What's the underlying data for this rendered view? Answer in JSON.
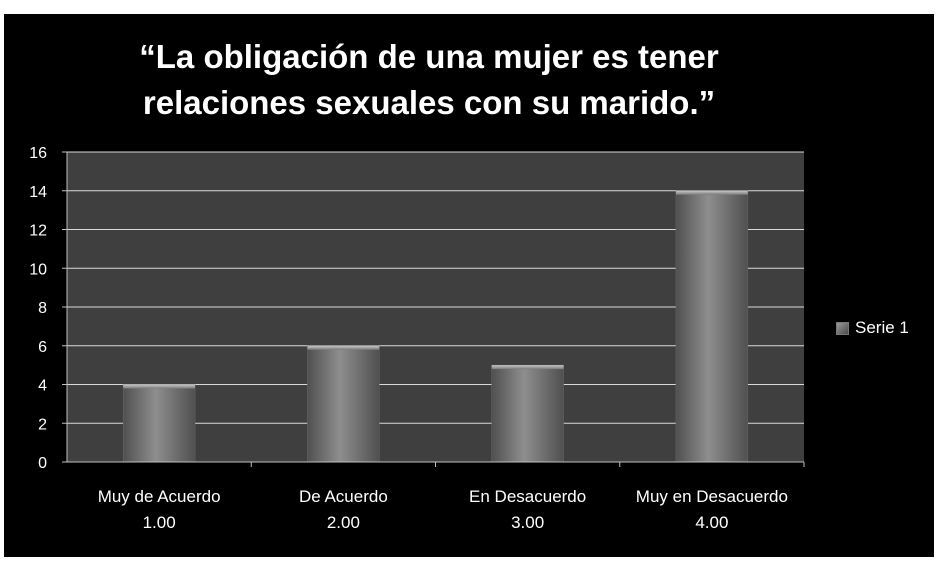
{
  "chart_data": {
    "type": "bar",
    "title_lines": [
      "“La obligación de una mujer es tener",
      "relaciones sexuales con su  marido.”"
    ],
    "categories": [
      {
        "label": "Muy de Acuerdo",
        "code": "1.00"
      },
      {
        "label": "De Acuerdo",
        "code": "2.00"
      },
      {
        "label": "En Desacuerdo",
        "code": "3.00"
      },
      {
        "label": "Muy en Desacuerdo",
        "code": "4.00"
      }
    ],
    "series": [
      {
        "name": "Serie 1",
        "values": [
          4,
          6,
          5,
          14
        ]
      }
    ],
    "ylim": [
      0,
      16
    ],
    "yticks": [
      0,
      2,
      4,
      6,
      8,
      10,
      12,
      14,
      16
    ],
    "grid": true,
    "legend_position": "right",
    "colors": {
      "background": "#000000",
      "plot_area": "#3f3f3f",
      "gridline": "#d9d9d9",
      "bar_light": "#8c8c8c",
      "bar_dark": "#4d4d4d",
      "text": "#ffffff"
    }
  }
}
